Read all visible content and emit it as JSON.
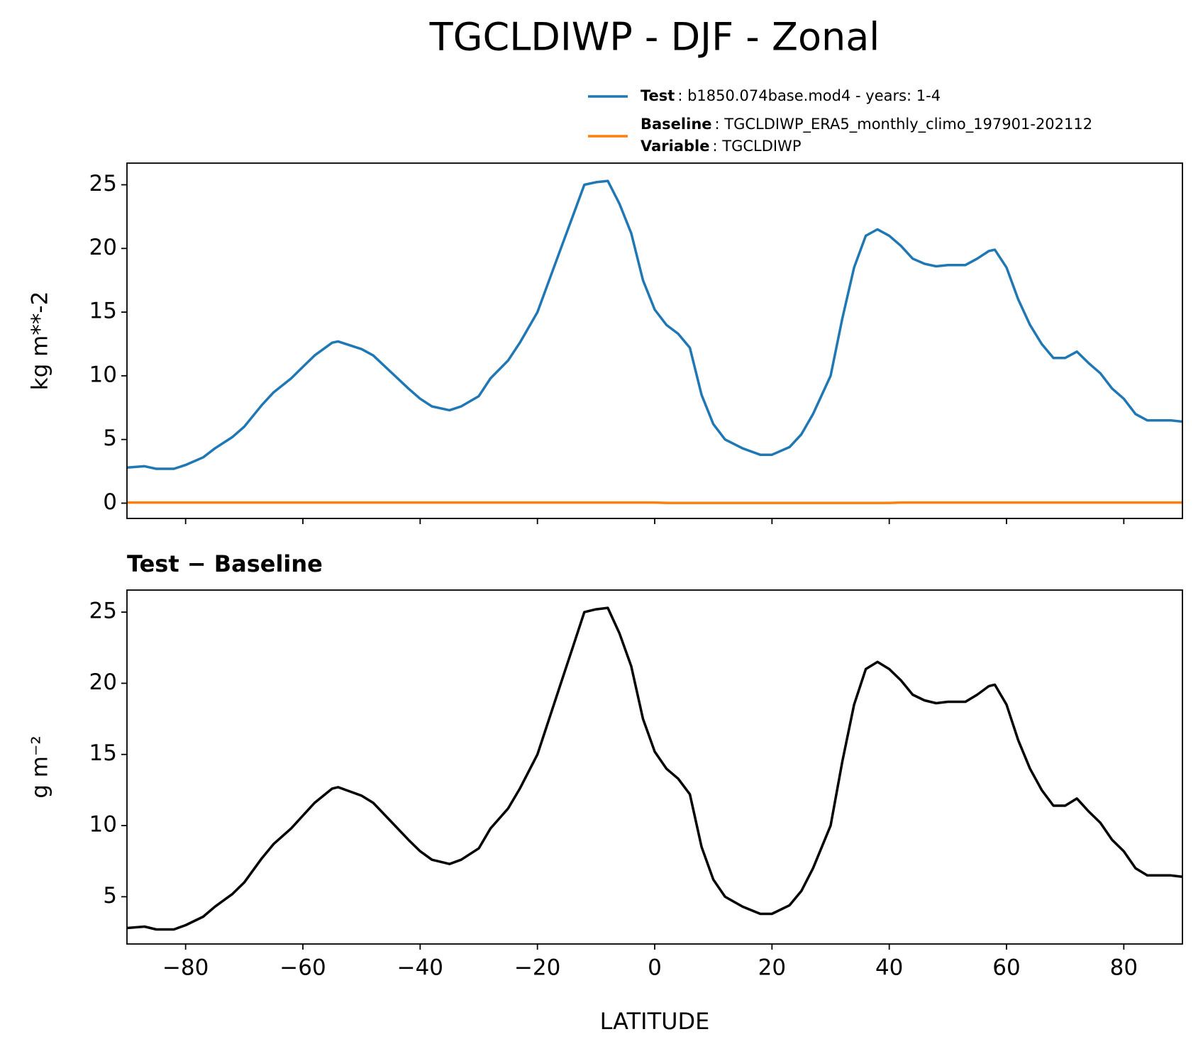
{
  "chart_data": [
    {
      "type": "line",
      "title": "TGCLDIWP - DJF - Zonal",
      "ylabel": "kg m**-2",
      "x": [
        -90,
        -87,
        -85,
        -82,
        -80,
        -77,
        -75,
        -72,
        -70,
        -67,
        -65,
        -62,
        -60,
        -58,
        -55,
        -54,
        -52,
        -50,
        -48,
        -45,
        -42,
        -40,
        -38,
        -35,
        -33,
        -30,
        -28,
        -25,
        -23,
        -20,
        -18,
        -16,
        -14,
        -12,
        -10,
        -8,
        -6,
        -4,
        -2,
        0,
        2,
        4,
        6,
        8,
        10,
        12,
        15,
        18,
        20,
        23,
        25,
        27,
        30,
        32,
        34,
        36,
        38,
        40,
        42,
        44,
        46,
        48,
        50,
        53,
        55,
        57,
        58,
        60,
        62,
        64,
        66,
        68,
        70,
        72,
        74,
        76,
        78,
        80,
        82,
        84,
        86,
        88,
        90
      ],
      "series": [
        {
          "name": "Test",
          "description": ": b1850.074base.mod4 - years: 1-4",
          "color": "#1f77b4",
          "values": [
            2.8,
            2.9,
            2.7,
            2.7,
            3.0,
            3.6,
            4.3,
            5.2,
            6.0,
            7.7,
            8.7,
            9.8,
            10.7,
            11.6,
            12.6,
            12.7,
            12.4,
            12.1,
            11.6,
            10.3,
            9.0,
            8.2,
            7.6,
            7.3,
            7.6,
            8.4,
            9.8,
            11.2,
            12.6,
            15.0,
            17.5,
            20.0,
            22.5,
            25.0,
            25.2,
            25.3,
            23.5,
            21.2,
            17.5,
            15.2,
            14.0,
            13.3,
            12.2,
            8.5,
            6.2,
            5.0,
            4.3,
            3.8,
            3.8,
            4.4,
            5.4,
            7.0,
            10.0,
            14.5,
            18.5,
            21.0,
            21.5,
            21.0,
            20.2,
            19.2,
            18.8,
            18.6,
            18.7,
            18.7,
            19.2,
            19.8,
            19.9,
            18.5,
            16.0,
            14.0,
            12.5,
            11.4,
            11.4,
            11.9,
            11.0,
            10.2,
            9.0,
            8.2,
            7.0,
            6.5,
            6.5,
            6.5,
            6.4
          ]
        },
        {
          "name": "Baseline",
          "description": ": TGCLDIWP_ERA5_monthly_climo_197901-202112",
          "color": "#ff7f0e",
          "values": [
            0.05,
            0.05,
            0.05,
            0.05,
            0.05,
            0.05,
            0.05,
            0.05,
            0.05,
            0.05,
            0.05,
            0.05,
            0.05,
            0.05,
            0.05,
            0.05,
            0.05,
            0.05,
            0.05,
            0.05,
            0.05,
            0.05,
            0.05,
            0.05,
            0.05,
            0.05,
            0.05,
            0.05,
            0.05,
            0.05,
            0.05,
            0.05,
            0.05,
            0.05,
            0.05,
            0.05,
            0.05,
            0.05,
            0.05,
            0.05,
            0.02,
            0.02,
            0.02,
            0.02,
            0.02,
            0.02,
            0.02,
            0.02,
            0.02,
            0.02,
            0.02,
            0.02,
            0.02,
            0.02,
            0.02,
            0.02,
            0.02,
            0.02,
            0.05,
            0.05,
            0.05,
            0.05,
            0.05,
            0.05,
            0.05,
            0.05,
            0.05,
            0.05,
            0.05,
            0.05,
            0.05,
            0.05,
            0.05,
            0.05,
            0.05,
            0.05,
            0.05,
            0.05,
            0.05,
            0.05,
            0.05,
            0.05,
            0.05
          ]
        }
      ],
      "legend_extra": {
        "name": "Variable",
        "description": ": TGCLDIWP"
      },
      "xlim": [
        -90,
        90
      ],
      "xticks": [
        -80,
        -60,
        -40,
        -20,
        0,
        20,
        40,
        60,
        80
      ],
      "ylim": [
        -1.2,
        26.7
      ],
      "yticks": [
        0,
        5,
        10,
        15,
        20,
        25
      ]
    },
    {
      "type": "line",
      "subtitle": "Test − Baseline",
      "ylabel": "g m⁻²",
      "xlabel": "LATITUDE",
      "x": [
        -90,
        -87,
        -85,
        -82,
        -80,
        -77,
        -75,
        -72,
        -70,
        -67,
        -65,
        -62,
        -60,
        -58,
        -55,
        -54,
        -52,
        -50,
        -48,
        -45,
        -42,
        -40,
        -38,
        -35,
        -33,
        -30,
        -28,
        -25,
        -23,
        -20,
        -18,
        -16,
        -14,
        -12,
        -10,
        -8,
        -6,
        -4,
        -2,
        0,
        2,
        4,
        6,
        8,
        10,
        12,
        15,
        18,
        20,
        23,
        25,
        27,
        30,
        32,
        34,
        36,
        38,
        40,
        42,
        44,
        46,
        48,
        50,
        53,
        55,
        57,
        58,
        60,
        62,
        64,
        66,
        68,
        70,
        72,
        74,
        76,
        78,
        80,
        82,
        84,
        86,
        88,
        90
      ],
      "series": [
        {
          "color": "#000000",
          "values": [
            2.8,
            2.9,
            2.7,
            2.7,
            3.0,
            3.6,
            4.3,
            5.2,
            6.0,
            7.7,
            8.7,
            9.8,
            10.7,
            11.6,
            12.6,
            12.7,
            12.4,
            12.1,
            11.6,
            10.3,
            9.0,
            8.2,
            7.6,
            7.3,
            7.6,
            8.4,
            9.8,
            11.2,
            12.6,
            15.0,
            17.5,
            20.0,
            22.5,
            25.0,
            25.2,
            25.3,
            23.5,
            21.2,
            17.5,
            15.2,
            14.0,
            13.3,
            12.2,
            8.5,
            6.2,
            5.0,
            4.3,
            3.8,
            3.8,
            4.4,
            5.4,
            7.0,
            10.0,
            14.5,
            18.5,
            21.0,
            21.5,
            21.0,
            20.2,
            19.2,
            18.8,
            18.6,
            18.7,
            18.7,
            19.2,
            19.8,
            19.9,
            18.5,
            16.0,
            14.0,
            12.5,
            11.4,
            11.4,
            11.9,
            11.0,
            10.2,
            9.0,
            8.2,
            7.0,
            6.5,
            6.5,
            6.5,
            6.4
          ]
        }
      ],
      "xlim": [
        -90,
        90
      ],
      "xticks": [
        {
          "value": -80,
          "label": "−80"
        },
        {
          "value": -60,
          "label": "−60"
        },
        {
          "value": -40,
          "label": "−40"
        },
        {
          "value": -20,
          "label": "−20"
        },
        0,
        20,
        40,
        60,
        80
      ],
      "ylim": [
        1.68,
        26.55
      ],
      "yticks": [
        5,
        10,
        15,
        20,
        25
      ]
    }
  ]
}
